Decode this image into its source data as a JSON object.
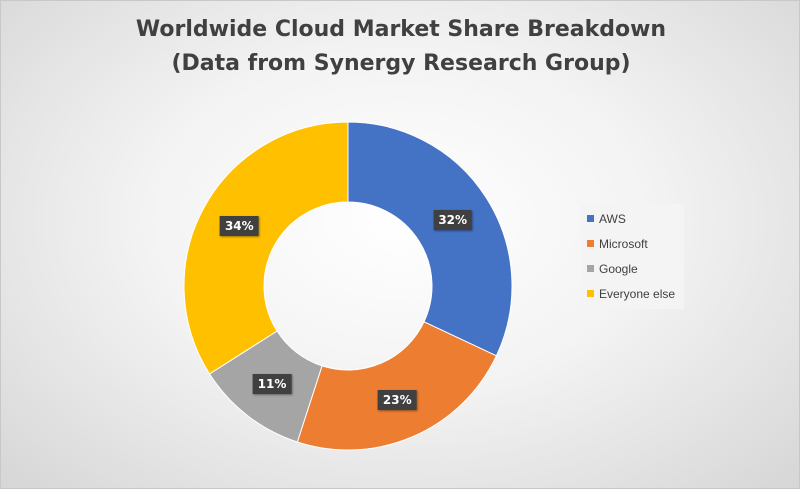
{
  "chart_data": {
    "type": "pie",
    "title": "Worldwide Cloud Market Share Breakdown",
    "subtitle": "(Data from Synergy Research Group)",
    "hole": true,
    "legend_position": "right",
    "categories": [
      "AWS",
      "Microsoft",
      "Google",
      "Everyone else"
    ],
    "values": [
      32,
      23,
      11,
      34
    ],
    "labels": [
      "32%",
      "23%",
      "11%",
      "34%"
    ],
    "colors": [
      "#4472c4",
      "#ed7d31",
      "#a5a5a5",
      "#ffc000"
    ]
  }
}
